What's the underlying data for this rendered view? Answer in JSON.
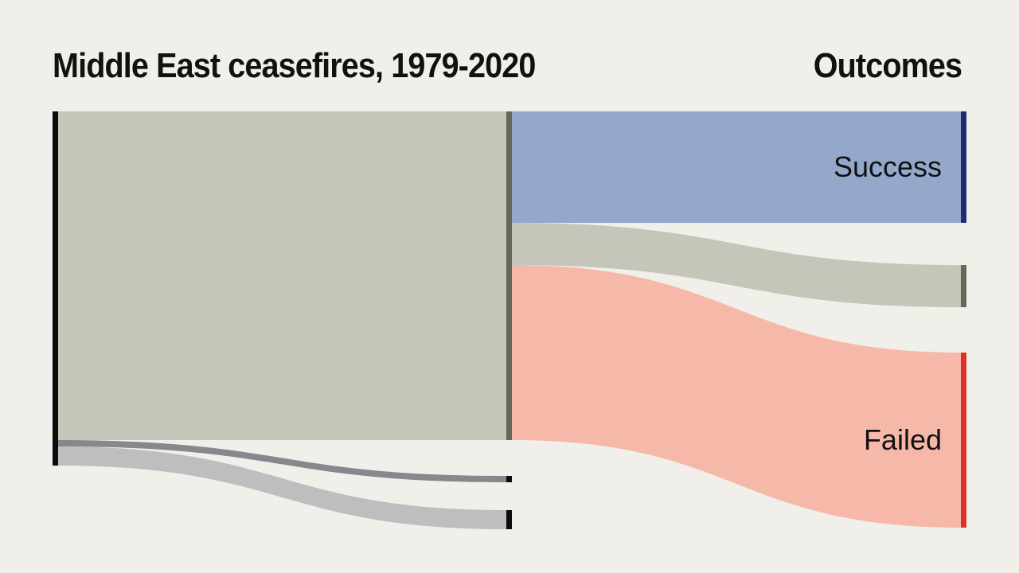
{
  "chart_data": {
    "type": "sankey",
    "title": "Middle East ceasefires, 1979-2020",
    "right_heading": "Outcomes",
    "nodes": [
      {
        "label": null,
        "column": 0,
        "color": "#0b0b0b"
      },
      {
        "label": null,
        "column": 1,
        "color": "#67675a"
      },
      {
        "label": null,
        "column": 1,
        "color": "#0b0b0b"
      },
      {
        "label": null,
        "column": 1,
        "color": "#0b0b0b"
      },
      {
        "label": "Success",
        "column": 2,
        "color": "#232a70"
      },
      {
        "label": null,
        "column": 2,
        "color": "#67675a"
      },
      {
        "label": "Failed",
        "column": 2,
        "color": "#e0302a"
      }
    ],
    "links": [
      {
        "source": 0,
        "target": 1,
        "value": 413,
        "color": "#c5c5b9"
      },
      {
        "source": 0,
        "target": 2,
        "value": 8,
        "color": "#87888b"
      },
      {
        "source": 0,
        "target": 3,
        "value": 24,
        "color": "#bebebe"
      },
      {
        "source": 1,
        "target": 4,
        "value": 140,
        "color": "#93a8cb"
      },
      {
        "source": 1,
        "target": 5,
        "value": 53,
        "color": "#c5c5b9"
      },
      {
        "source": 1,
        "target": 6,
        "value": 220,
        "color": "#f6b8a9"
      }
    ]
  }
}
